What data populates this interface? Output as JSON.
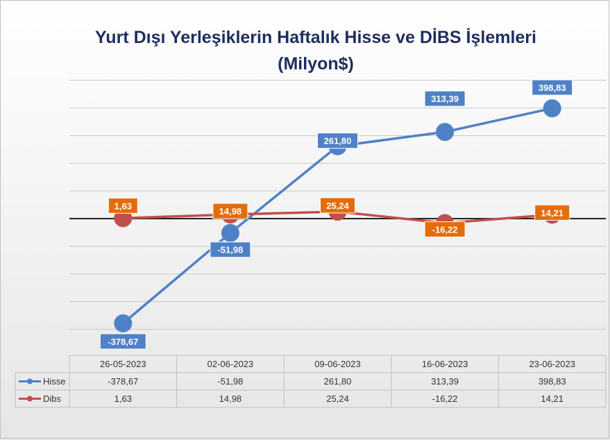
{
  "chart_data": {
    "type": "line",
    "title_line1": "Yurt Dışı Yerleşiklerin Haftalık Hisse ve DİBS İşlemleri",
    "title_line2": "(Milyon$)",
    "categories": [
      "26-05-2023",
      "02-06-2023",
      "09-06-2023",
      "16-06-2023",
      "23-06-2023"
    ],
    "series": [
      {
        "name": "Hisse",
        "values": [
          -378.67,
          -51.98,
          261.8,
          313.39,
          398.83
        ],
        "labels": [
          "-378,67",
          "-51,98",
          "261,80",
          "313,39",
          "398,83"
        ],
        "color": "#4f81c6",
        "label_color": "#4f81c6"
      },
      {
        "name": "Dibs",
        "values": [
          1.63,
          14.98,
          25.24,
          -16.22,
          14.21
        ],
        "labels": [
          "1,63",
          "14,98",
          "25,24",
          "-16,22",
          "14,21"
        ],
        "color": "#c0504d",
        "label_color": "#e46c0a"
      }
    ],
    "ylim": [
      -400,
      500
    ],
    "grid": true,
    "legend": "data-table",
    "colors": {
      "title": "#1f2d5f",
      "zero_line": "#222222",
      "grid": "#c8c8c8"
    }
  }
}
